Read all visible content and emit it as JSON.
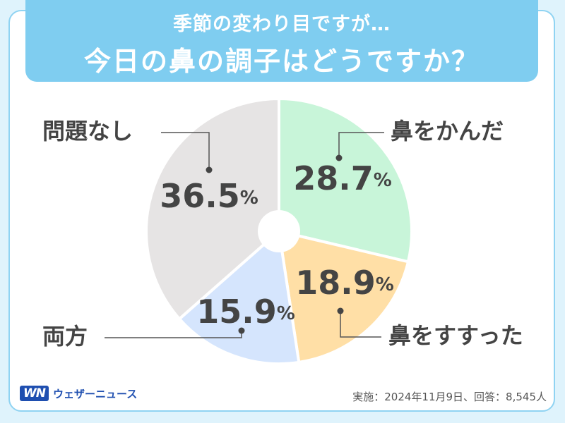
{
  "header": {
    "line1": "季節の変わり目ですが…",
    "line2": "今日の鼻の調子はどうですか？"
  },
  "chart_data": {
    "type": "pie",
    "categories": [
      "鼻をかんだ",
      "鼻をすすった",
      "両方",
      "問題なし"
    ],
    "values": [
      28.7,
      18.9,
      15.9,
      36.5
    ],
    "value_labels": [
      "28.7",
      "18.9",
      "15.9",
      "36.5"
    ],
    "unit": "%",
    "colors": [
      "#c8f5d9",
      "#ffdfa6",
      "#d5e5fd",
      "#e6e4e4"
    ],
    "donut_hole": true,
    "start_angle": "12 o'clock",
    "direction": "clockwise",
    "legend": "none"
  },
  "footer": {
    "logo_mark": "WN",
    "logo_text": "ウェザーニュース",
    "note": "実施：2024年11月9日、回答：8,545人"
  }
}
